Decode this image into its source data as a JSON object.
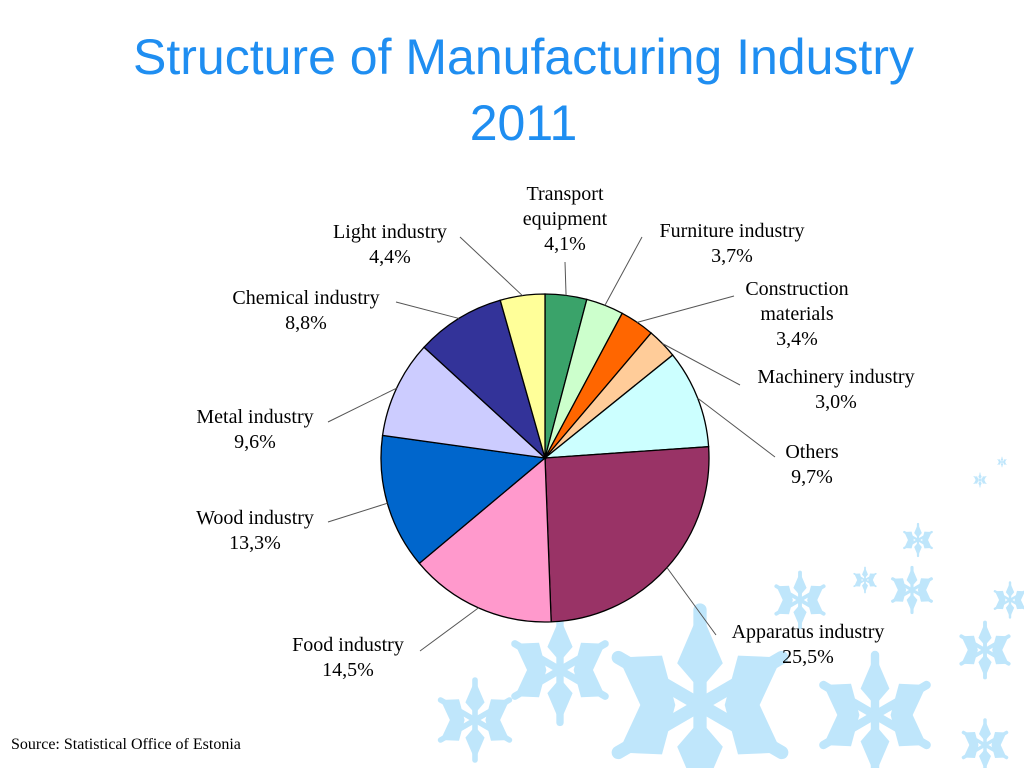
{
  "slide": {
    "title_line1": "Structure of Manufacturing Industry",
    "title_line2": "2011",
    "source": "Source: Statistical Office of Estonia"
  },
  "colors": {
    "title": "#1f8ef1",
    "snowflake": "#bfe6fb"
  },
  "chart_data": {
    "type": "pie",
    "title": "Structure of Manufacturing Industry 2011",
    "start": "12 o'clock, clockwise",
    "series": [
      {
        "name": "Transport equipment",
        "value": 4.1,
        "display": "4,1%",
        "label_lines": [
          "Transport",
          "equipment",
          "4,1%"
        ],
        "color": "#3aa36a"
      },
      {
        "name": "Furniture industry",
        "value": 3.7,
        "display": "3,7%",
        "label_lines": [
          "Furniture industry",
          "3,7%"
        ],
        "color": "#ccffcc"
      },
      {
        "name": "Construction materials",
        "value": 3.4,
        "display": "3,4%",
        "label_lines": [
          "Construction",
          "materials",
          "3,4%"
        ],
        "color": "#ff6600"
      },
      {
        "name": "Machinery industry",
        "value": 3.0,
        "display": "3,0%",
        "label_lines": [
          "Machinery industry",
          "3,0%"
        ],
        "color": "#ffcc99"
      },
      {
        "name": "Others",
        "value": 9.7,
        "display": "9,7%",
        "label_lines": [
          "Others",
          "9,7%"
        ],
        "color": "#ccffff"
      },
      {
        "name": "Apparatus industry",
        "value": 25.5,
        "display": "25,5%",
        "label_lines": [
          "Apparatus industry",
          "25,5%"
        ],
        "color": "#993366"
      },
      {
        "name": "Food industry",
        "value": 14.5,
        "display": "14,5%",
        "label_lines": [
          "Food industry",
          "14,5%"
        ],
        "color": "#ff99cc"
      },
      {
        "name": "Wood industry",
        "value": 13.3,
        "display": "13,3%",
        "label_lines": [
          "Wood industry",
          "13,3%"
        ],
        "color": "#0066cc"
      },
      {
        "name": "Metal industry",
        "value": 9.6,
        "display": "9,6%",
        "label_lines": [
          "Metal industry",
          "9,6%"
        ],
        "color": "#ccccff"
      },
      {
        "name": "Chemical industry",
        "value": 8.8,
        "display": "8,8%",
        "label_lines": [
          "Chemical industry",
          "8,8%"
        ],
        "color": "#333399"
      },
      {
        "name": "Light industry",
        "value": 4.4,
        "display": "4,4%",
        "label_lines": [
          "Light industry",
          "4,4%"
        ],
        "color": "#ffff99"
      }
    ]
  }
}
